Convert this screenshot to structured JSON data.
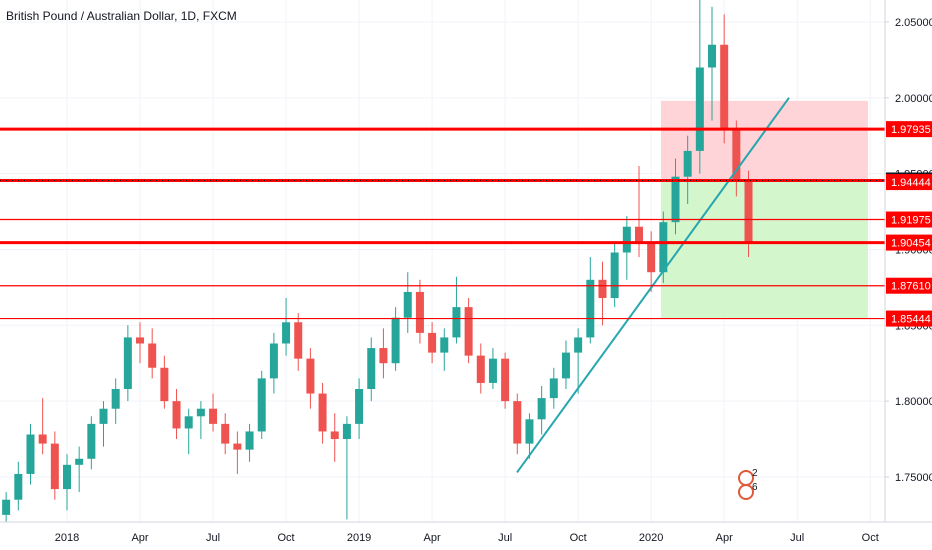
{
  "chart_data": {
    "type": "candlestick",
    "title": "British Pound / Australian Dollar, 1D, FXCM",
    "categories": [
      null,
      null,
      null,
      null,
      null,
      "2018",
      null,
      null,
      null,
      null,
      null,
      "Apr",
      null,
      null,
      null,
      null,
      null,
      "Jul",
      null,
      null,
      null,
      null,
      null,
      "Oct",
      null,
      null,
      null,
      null,
      null,
      "2019",
      null,
      null,
      null,
      null,
      null,
      "Apr",
      null,
      null,
      null,
      null,
      null,
      "Jul",
      null,
      null,
      null,
      null,
      null,
      "Oct",
      null,
      null,
      null,
      null,
      null,
      "2020",
      null,
      null,
      null,
      null,
      null,
      "Apr",
      null,
      null,
      null,
      null,
      null,
      "Jul",
      null,
      null,
      null,
      null,
      null,
      "Oct"
    ],
    "open": [
      1.725,
      1.735,
      1.752,
      1.778,
      1.772,
      1.742,
      1.758,
      1.762,
      1.785,
      1.795,
      1.808,
      1.842,
      1.838,
      1.822,
      1.8,
      1.782,
      1.79,
      1.795,
      1.785,
      1.772,
      1.768,
      1.78,
      1.815,
      1.838,
      1.852,
      1.828,
      1.805,
      1.78,
      1.775,
      1.785,
      1.808,
      1.835,
      1.825,
      1.855,
      1.872,
      1.845,
      1.832,
      1.842,
      1.862,
      1.83,
      1.812,
      1.828,
      1.8,
      1.772,
      1.788,
      1.802,
      1.815,
      1.832,
      1.842,
      1.88,
      1.868,
      1.898,
      1.915,
      1.905,
      1.885,
      1.918,
      1.948,
      1.965,
      2.02,
      2.035,
      1.98,
      1.945,
      null,
      null,
      null,
      null,
      null,
      null,
      null,
      null,
      null,
      null
    ],
    "high": [
      1.74,
      1.76,
      1.785,
      1.802,
      1.78,
      1.765,
      1.77,
      1.79,
      1.8,
      1.815,
      1.85,
      1.852,
      1.848,
      1.83,
      1.808,
      1.795,
      1.8,
      1.805,
      1.792,
      1.78,
      1.785,
      1.82,
      1.845,
      1.868,
      1.858,
      1.835,
      1.812,
      1.792,
      1.79,
      1.815,
      1.842,
      1.848,
      1.862,
      1.885,
      1.88,
      1.852,
      1.848,
      1.882,
      1.868,
      1.838,
      1.835,
      1.832,
      1.805,
      1.792,
      1.81,
      1.822,
      1.84,
      1.848,
      1.895,
      1.892,
      1.905,
      1.922,
      1.955,
      1.912,
      1.925,
      1.96,
      1.975,
      2.065,
      2.06,
      2.055,
      1.985,
      1.952,
      null,
      null,
      null,
      null,
      null,
      null,
      null,
      null,
      null,
      null
    ],
    "low": [
      1.718,
      1.728,
      1.745,
      1.765,
      1.735,
      1.728,
      1.74,
      1.755,
      1.77,
      1.785,
      1.8,
      1.825,
      1.815,
      1.795,
      1.775,
      1.765,
      1.775,
      1.78,
      1.765,
      1.752,
      1.76,
      1.775,
      1.805,
      1.83,
      1.82,
      1.795,
      1.772,
      1.76,
      1.722,
      1.775,
      1.8,
      1.815,
      1.82,
      1.845,
      1.838,
      1.825,
      1.82,
      1.838,
      1.825,
      1.805,
      1.808,
      1.795,
      1.765,
      1.762,
      1.778,
      1.795,
      1.808,
      1.805,
      1.838,
      1.85,
      1.862,
      1.88,
      1.895,
      1.872,
      1.878,
      1.91,
      1.93,
      1.95,
      1.985,
      1.97,
      1.935,
      1.895,
      null,
      null,
      null,
      null,
      null,
      null,
      null,
      null,
      null,
      null
    ],
    "close": [
      1.735,
      1.752,
      1.778,
      1.772,
      1.742,
      1.758,
      1.762,
      1.785,
      1.795,
      1.808,
      1.842,
      1.838,
      1.822,
      1.8,
      1.782,
      1.79,
      1.795,
      1.785,
      1.772,
      1.768,
      1.78,
      1.815,
      1.838,
      1.852,
      1.828,
      1.805,
      1.78,
      1.775,
      1.785,
      1.808,
      1.835,
      1.825,
      1.855,
      1.872,
      1.845,
      1.832,
      1.842,
      1.862,
      1.83,
      1.812,
      1.828,
      1.8,
      1.772,
      1.788,
      1.802,
      1.815,
      1.832,
      1.842,
      1.88,
      1.868,
      1.898,
      1.915,
      1.905,
      1.885,
      1.918,
      1.948,
      1.965,
      2.02,
      2.035,
      1.98,
      1.945,
      1.905,
      null,
      null,
      null,
      null,
      null,
      null,
      null,
      null,
      null,
      null
    ],
    "up_color": "#26a69a",
    "down_color": "#ef5350",
    "ylim": [
      1.7203,
      2.0645
    ],
    "yticks": [
      {
        "value": 1.75,
        "label": "1.75000"
      },
      {
        "value": 1.8,
        "label": "1.80000"
      },
      {
        "value": 1.85,
        "label": "1.85000"
      },
      {
        "value": 1.9,
        "label": "1.90000"
      },
      {
        "value": 1.95,
        "label": "1.95000"
      },
      {
        "value": 2.0,
        "label": "2.00000"
      },
      {
        "value": 2.05,
        "label": "2.05000"
      }
    ],
    "grid": true,
    "levels": [
      {
        "value": 1.97935,
        "label": "1.97935",
        "style": "thick",
        "color": "#ff0000"
      },
      {
        "value": 1.9455,
        "label": "1.94550",
        "style": "dotted",
        "color": "#131722"
      },
      {
        "value": 1.94444,
        "label": "1.94444",
        "style": "none",
        "color": "#ff0000"
      },
      {
        "value": 1.91975,
        "label": "1.91975",
        "style": "thin",
        "color": "#ff0000"
      },
      {
        "value": 1.90454,
        "label": "1.90454",
        "style": "thick",
        "color": "#ff0000"
      },
      {
        "value": 1.8761,
        "label": "1.87610",
        "style": "thin",
        "color": "#ff0000"
      },
      {
        "value": 1.85444,
        "label": "1.85444",
        "style": "thin",
        "color": "#ff0000"
      }
    ],
    "position": {
      "stop": 1.998,
      "entry": 1.9455,
      "target": 1.85444,
      "stop_color": "#ffcdd2",
      "target_color": "#ccf5c4"
    },
    "trendline": {
      "start": 1.753,
      "end": 2.0,
      "color": "#26a6b0"
    },
    "events": [
      "2",
      "6"
    ]
  }
}
